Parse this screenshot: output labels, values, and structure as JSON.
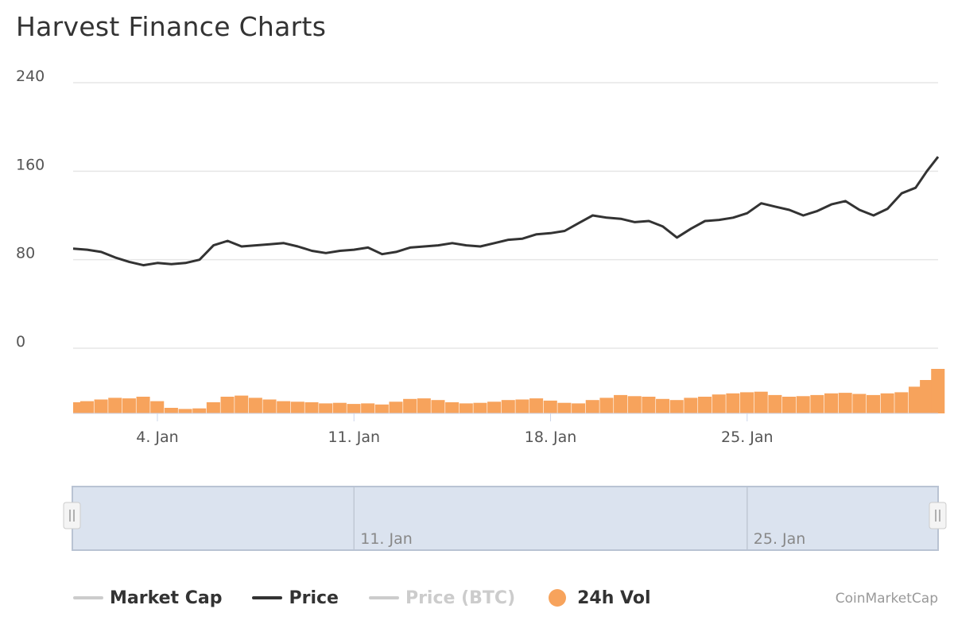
{
  "title": "Harvest Finance Charts",
  "credit": "CoinMarketCap",
  "legend": [
    {
      "label": "Market Cap",
      "color": "#cccccc",
      "text_color": "#333333",
      "kind": "line",
      "enabled": true
    },
    {
      "label": "Price",
      "color": "#333333",
      "text_color": "#333333",
      "kind": "line",
      "enabled": true
    },
    {
      "label": "Price (BTC)",
      "color": "#cccccc",
      "text_color": "#cccccc",
      "kind": "line",
      "enabled": false
    },
    {
      "label": "24h Vol",
      "color": "#f7a35c",
      "text_color": "#333333",
      "kind": "dot",
      "enabled": true
    }
  ],
  "navigator": {
    "ticks": [
      "11. Jan",
      "25. Jan"
    ],
    "fill": "#dbe3ef"
  },
  "chart_data": {
    "type": "line",
    "title": "Harvest Finance Charts",
    "xlabel": "",
    "ylabel": "",
    "ylim": [
      0,
      240
    ],
    "yticks": [
      "0",
      "80",
      "160",
      "240"
    ],
    "xticks": [
      "4. Jan",
      "11. Jan",
      "18. Jan",
      "25. Jan"
    ],
    "xtick_days": [
      4,
      11,
      18,
      25
    ],
    "xlim_days": [
      1,
      31.8
    ],
    "grid": true,
    "series": [
      {
        "name": "Price",
        "color": "#333333",
        "x_days": [
          1.0,
          1.5,
          2.0,
          2.5,
          3.0,
          3.5,
          4.0,
          4.5,
          5.0,
          5.5,
          6.0,
          6.5,
          7.0,
          7.5,
          8.0,
          8.5,
          9.0,
          9.5,
          10.0,
          10.5,
          11.0,
          11.5,
          12.0,
          12.5,
          13.0,
          13.5,
          14.0,
          14.5,
          15.0,
          15.5,
          16.0,
          16.5,
          17.0,
          17.5,
          18.0,
          18.5,
          19.0,
          19.5,
          20.0,
          20.5,
          21.0,
          21.5,
          22.0,
          22.5,
          23.0,
          23.5,
          24.0,
          24.5,
          25.0,
          25.5,
          26.0,
          26.5,
          27.0,
          27.5,
          28.0,
          28.5,
          29.0,
          29.5,
          30.0,
          30.5,
          31.0,
          31.4,
          31.8
        ],
        "values": [
          90,
          89,
          87,
          82,
          78,
          75,
          77,
          76,
          77,
          80,
          93,
          97,
          92,
          93,
          94,
          95,
          92,
          88,
          86,
          88,
          89,
          91,
          85,
          87,
          91,
          92,
          93,
          95,
          93,
          92,
          95,
          98,
          99,
          103,
          104,
          106,
          113,
          120,
          118,
          117,
          114,
          115,
          110,
          100,
          108,
          115,
          116,
          118,
          122,
          131,
          128,
          125,
          120,
          124,
          130,
          133,
          125,
          120,
          126,
          140,
          145,
          160,
          173
        ]
      }
    ],
    "volume": {
      "name": "24h Vol",
      "color": "#f7a35c",
      "ylim": [
        0,
        100
      ],
      "x_days": [
        1.0,
        1.5,
        2.0,
        2.5,
        3.0,
        3.5,
        4.0,
        4.5,
        5.0,
        5.5,
        6.0,
        6.5,
        7.0,
        7.5,
        8.0,
        8.5,
        9.0,
        9.5,
        10.0,
        10.5,
        11.0,
        11.5,
        12.0,
        12.5,
        13.0,
        13.5,
        14.0,
        14.5,
        15.0,
        15.5,
        16.0,
        16.5,
        17.0,
        17.5,
        18.0,
        18.5,
        19.0,
        19.5,
        20.0,
        20.5,
        21.0,
        21.5,
        22.0,
        22.5,
        23.0,
        23.5,
        24.0,
        24.5,
        25.0,
        25.5,
        26.0,
        26.5,
        27.0,
        27.5,
        28.0,
        28.5,
        29.0,
        29.5,
        30.0,
        30.5,
        31.0,
        31.4,
        31.8
      ],
      "values": [
        20,
        22,
        25,
        28,
        27,
        30,
        22,
        10,
        8,
        9,
        20,
        30,
        32,
        28,
        25,
        22,
        21,
        20,
        18,
        19,
        17,
        18,
        16,
        21,
        26,
        27,
        24,
        20,
        18,
        19,
        21,
        24,
        25,
        27,
        23,
        19,
        18,
        24,
        28,
        33,
        31,
        30,
        26,
        24,
        28,
        30,
        34,
        36,
        38,
        39,
        33,
        30,
        31,
        33,
        36,
        37,
        35,
        33,
        36,
        38,
        48,
        60,
        80
      ]
    }
  }
}
